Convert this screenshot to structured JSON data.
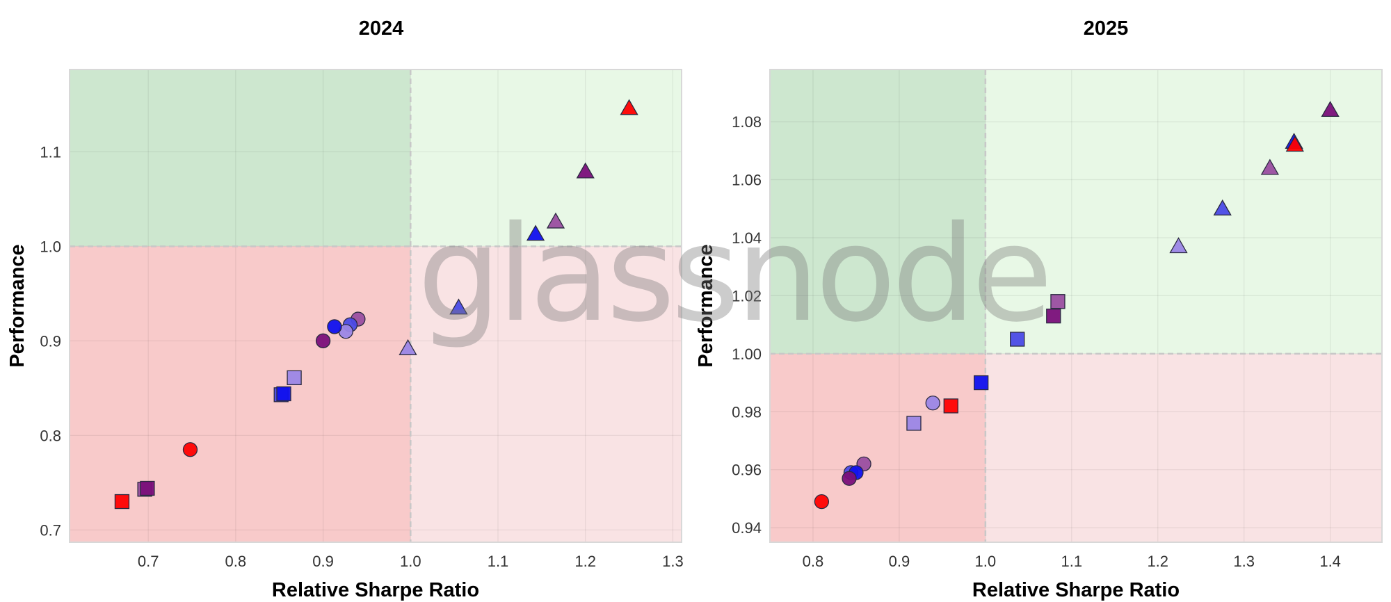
{
  "watermark": "glassnode",
  "colors": {
    "green_dark": "#cde7cf",
    "green_light": "#e8f8e6",
    "red_dark": "#f8caca",
    "red_light": "#f9e3e4",
    "red": "#ff0000",
    "purple": "#7a0f7a",
    "blue": "#1010ee",
    "royal_blue": "#4a4ae6",
    "light_purple": "#9b86e6",
    "mauve": "#9a4ea0"
  },
  "chart_data": [
    {
      "type": "scatter",
      "title": "2024",
      "xlabel": "Relative Sharpe Ratio",
      "ylabel": "Performance",
      "xlim": [
        0.61,
        1.31
      ],
      "ylim": [
        0.687,
        1.187
      ],
      "xticks": [
        "0.7",
        "0.8",
        "0.9",
        "1.0",
        "1.1",
        "1.2",
        "1.3"
      ],
      "yticks": [
        "0.7",
        "0.8",
        "0.9",
        "1.0",
        "1.1"
      ],
      "xtick_values": [
        0.7,
        0.8,
        0.9,
        1.0,
        1.1,
        1.2,
        1.3
      ],
      "ytick_values": [
        0.7,
        0.8,
        0.9,
        1.0,
        1.1
      ],
      "threshold": {
        "x": 1.0,
        "y": 1.0
      },
      "grid": true,
      "points": [
        {
          "shape": "triangle",
          "color": "red",
          "x": 1.25,
          "y": 1.146
        },
        {
          "shape": "triangle",
          "color": "purple",
          "x": 1.2,
          "y": 1.079
        },
        {
          "shape": "triangle",
          "color": "mauve",
          "x": 1.166,
          "y": 1.026
        },
        {
          "shape": "triangle",
          "color": "blue",
          "x": 1.143,
          "y": 1.013
        },
        {
          "shape": "triangle",
          "color": "royal_blue",
          "x": 1.055,
          "y": 0.935
        },
        {
          "shape": "triangle",
          "color": "light_purple",
          "x": 0.997,
          "y": 0.892
        },
        {
          "shape": "circle",
          "color": "mauve",
          "x": 0.94,
          "y": 0.923
        },
        {
          "shape": "circle",
          "color": "royal_blue",
          "x": 0.931,
          "y": 0.917
        },
        {
          "shape": "circle",
          "color": "light_purple",
          "x": 0.926,
          "y": 0.91
        },
        {
          "shape": "circle",
          "color": "blue",
          "x": 0.913,
          "y": 0.915
        },
        {
          "shape": "circle",
          "color": "purple",
          "x": 0.9,
          "y": 0.9
        },
        {
          "shape": "circle",
          "color": "red",
          "x": 0.748,
          "y": 0.785
        },
        {
          "shape": "square",
          "color": "light_purple",
          "x": 0.867,
          "y": 0.861
        },
        {
          "shape": "square",
          "color": "royal_blue",
          "x": 0.852,
          "y": 0.843
        },
        {
          "shape": "square",
          "color": "blue",
          "x": 0.855,
          "y": 0.844
        },
        {
          "shape": "square",
          "color": "mauve",
          "x": 0.696,
          "y": 0.743
        },
        {
          "shape": "square",
          "color": "purple",
          "x": 0.699,
          "y": 0.744
        },
        {
          "shape": "square",
          "color": "red",
          "x": 0.67,
          "y": 0.73
        }
      ]
    },
    {
      "type": "scatter",
      "title": "2025",
      "xlabel": "Relative Sharpe Ratio",
      "ylabel": "Performance",
      "xlim": [
        0.75,
        1.46
      ],
      "ylim": [
        0.935,
        1.098
      ],
      "xticks": [
        "0.8",
        "0.9",
        "1.0",
        "1.1",
        "1.2",
        "1.3",
        "1.4"
      ],
      "yticks": [
        "0.94",
        "0.96",
        "0.98",
        "1.00",
        "1.02",
        "1.04",
        "1.06",
        "1.08"
      ],
      "xtick_values": [
        0.8,
        0.9,
        1.0,
        1.1,
        1.2,
        1.3,
        1.4
      ],
      "ytick_values": [
        0.94,
        0.96,
        0.98,
        1.0,
        1.02,
        1.04,
        1.06,
        1.08
      ],
      "threshold": {
        "x": 1.0,
        "y": 1.0
      },
      "grid": true,
      "points": [
        {
          "shape": "triangle",
          "color": "purple",
          "x": 1.4,
          "y": 1.084
        },
        {
          "shape": "triangle",
          "color": "blue",
          "x": 1.358,
          "y": 1.073
        },
        {
          "shape": "triangle",
          "color": "red",
          "x": 1.359,
          "y": 1.072
        },
        {
          "shape": "triangle",
          "color": "mauve",
          "x": 1.33,
          "y": 1.064
        },
        {
          "shape": "triangle",
          "color": "royal_blue",
          "x": 1.275,
          "y": 1.05
        },
        {
          "shape": "triangle",
          "color": "light_purple",
          "x": 1.224,
          "y": 1.037
        },
        {
          "shape": "square",
          "color": "mauve",
          "x": 1.084,
          "y": 1.018
        },
        {
          "shape": "square",
          "color": "purple",
          "x": 1.079,
          "y": 1.013
        },
        {
          "shape": "square",
          "color": "royal_blue",
          "x": 1.037,
          "y": 1.005
        },
        {
          "shape": "square",
          "color": "blue",
          "x": 0.995,
          "y": 0.99
        },
        {
          "shape": "square",
          "color": "red",
          "x": 0.96,
          "y": 0.982
        },
        {
          "shape": "square",
          "color": "light_purple",
          "x": 0.917,
          "y": 0.976
        },
        {
          "shape": "circle",
          "color": "light_purple",
          "x": 0.939,
          "y": 0.983
        },
        {
          "shape": "circle",
          "color": "mauve",
          "x": 0.859,
          "y": 0.962
        },
        {
          "shape": "circle",
          "color": "royal_blue",
          "x": 0.844,
          "y": 0.959
        },
        {
          "shape": "circle",
          "color": "blue",
          "x": 0.85,
          "y": 0.959
        },
        {
          "shape": "circle",
          "color": "purple",
          "x": 0.842,
          "y": 0.957
        },
        {
          "shape": "circle",
          "color": "red",
          "x": 0.81,
          "y": 0.949
        }
      ]
    }
  ]
}
